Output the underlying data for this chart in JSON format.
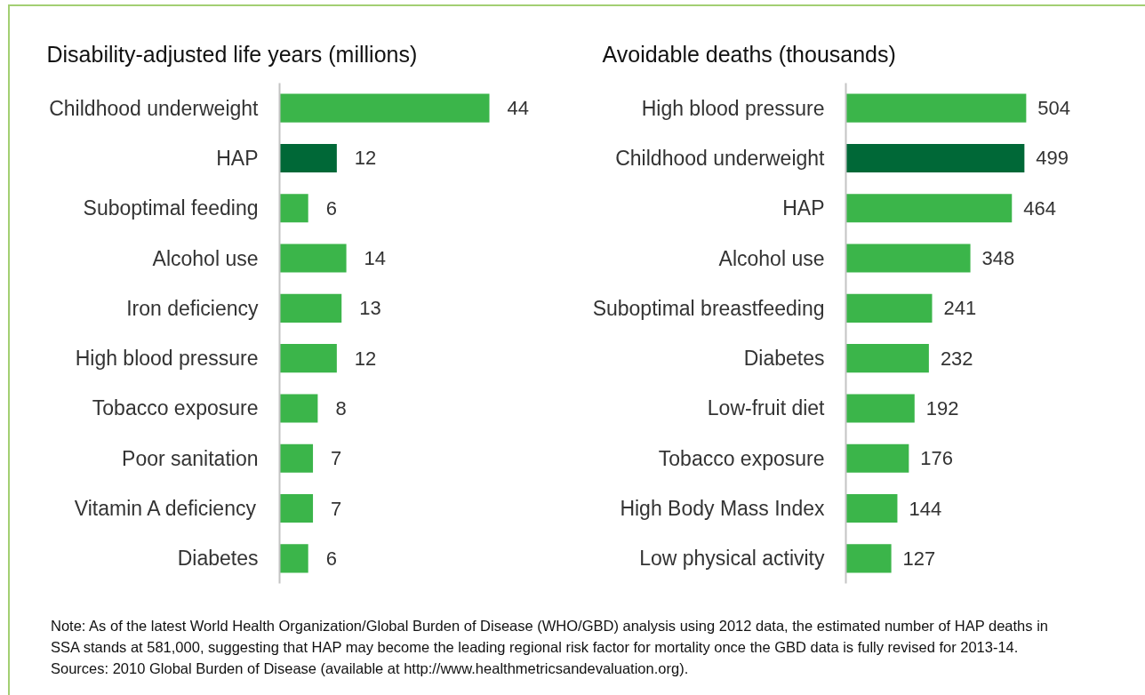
{
  "chart_data": [
    {
      "type": "bar",
      "orientation": "horizontal",
      "title": "Disability-adjusted life years (millions)",
      "categories": [
        "Childhood underweight",
        "HAP",
        "Suboptimal feeding",
        "Alcohol use",
        "Iron deficiency",
        "High blood pressure",
        "Tobacco exposure",
        "Poor sanitation",
        "Vitamin A deficiency",
        "Diabetes"
      ],
      "values": [
        44,
        12,
        6,
        14,
        13,
        12,
        8,
        7,
        7,
        6
      ],
      "data_labels": true,
      "colors": [
        "#3bb54a",
        "#006837",
        "#3bb54a",
        "#3bb54a",
        "#3bb54a",
        "#3bb54a",
        "#3bb54a",
        "#3bb54a",
        "#3bb54a",
        "#3bb54a"
      ],
      "tick_labels": "y"
    },
    {
      "type": "bar",
      "orientation": "horizontal",
      "title": "Avoidable deaths (thousands)",
      "categories": [
        "High blood pressure",
        "Childhood underweight",
        "HAP",
        "Alcohol use",
        "Suboptimal breastfeeding",
        "Diabetes",
        "Low-fruit diet",
        "Tobacco exposure",
        "High Body Mass Index",
        "Low physical activity"
      ],
      "values": [
        504,
        499,
        464,
        348,
        241,
        232,
        192,
        176,
        144,
        127
      ],
      "data_labels": true,
      "colors": [
        "#3bb54a",
        "#006837",
        "#3bb54a",
        "#3bb54a",
        "#3bb54a",
        "#3bb54a",
        "#3bb54a",
        "#3bb54a",
        "#3bb54a",
        "#3bb54a"
      ],
      "tick_labels": "y",
      "annotations": [
        "Note: As of the latest World Health Organization/Global Burden of Disease (WHO/GBD) analysis using 2012 data, the estimated  number  of HAP deaths in SSA stands at 581,000, suggesting that HAP may become the leading regional risk factor for mortality once the GBD data is fully revised for 2013-14.",
        "Sources: 2010 Global Burden of Disease (available at http://www.healthmetricsandevaluation.org)."
      ]
    }
  ]
}
